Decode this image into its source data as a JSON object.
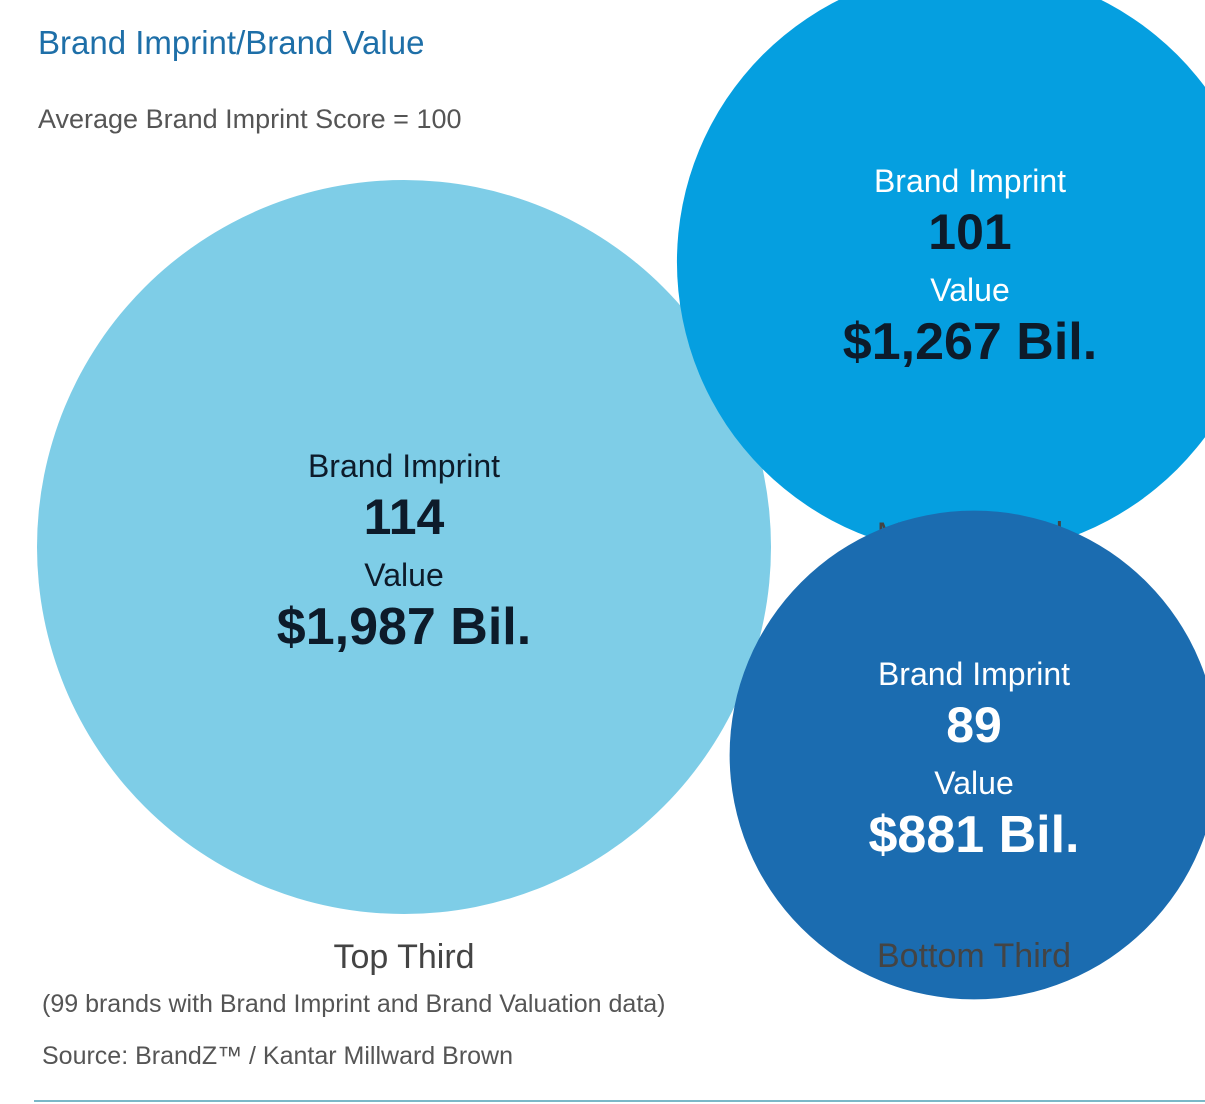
{
  "chart_data": {
    "type": "bubble",
    "title": "Brand Imprint/Brand Value",
    "subtitle": "Average Brand Imprint Score = 100",
    "imprint_label": "Brand Imprint",
    "value_label": "Value",
    "series": [
      {
        "name": "Top Third",
        "imprint": 114,
        "value": 1987,
        "value_text": "$1,987 Bil.",
        "color": "#7ecde7",
        "text_color": "#0d1b2a"
      },
      {
        "name": "Middle Third",
        "imprint": 101,
        "value": 1267,
        "value_text": "$1,267 Bil.",
        "color": "#059fe0",
        "text_color": "#ffffff",
        "number_color": "#0d1b2a"
      },
      {
        "name": "Bottom Third",
        "imprint": 89,
        "value": 881,
        "value_text": "$881 Bil.",
        "color": "#1b6cb0",
        "text_color": "#ffffff",
        "number_color": "#ffffff"
      }
    ],
    "note": "(99 brands with Brand Imprint and Brand Valuation data)",
    "source": "Source: BrandZ™ / Kantar Millward Brown"
  }
}
